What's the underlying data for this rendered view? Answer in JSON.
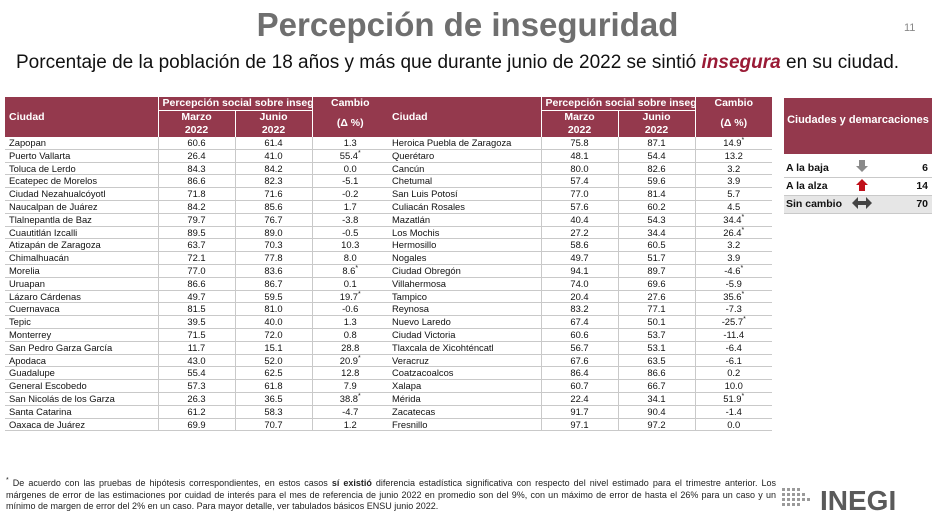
{
  "page": {
    "title": "Percepción de inseguridad",
    "page_number": "11",
    "subtitle_pre": "Porcentaje de la población de 18 años y más que durante junio de 2022 se sintió ",
    "subtitle_highlight": "insegura",
    "subtitle_post": " en su ciudad."
  },
  "table_header": {
    "city": "Ciudad",
    "perception": "Percepción social sobre inseguridad pública",
    "change": "Cambio",
    "change_unit": "(Δ %)",
    "march": "Marzo",
    "june": "Junio",
    "year": "2022"
  },
  "left_rows": [
    {
      "city": "Zapopan",
      "march": "60.6",
      "june": "61.4",
      "change": "1.3",
      "sig": ""
    },
    {
      "city": "Puerto Vallarta",
      "march": "26.4",
      "june": "41.0",
      "change": "55.4",
      "sig": "*"
    },
    {
      "city": "Toluca de Lerdo",
      "march": "84.3",
      "june": "84.2",
      "change": "0.0",
      "sig": ""
    },
    {
      "city": "Ecatepec de Morelos",
      "march": "86.6",
      "june": "82.3",
      "change": "-5.1",
      "sig": ""
    },
    {
      "city": "Ciudad Nezahualcóyotl",
      "march": "71.8",
      "june": "71.6",
      "change": "-0.2",
      "sig": ""
    },
    {
      "city": "Naucalpan de Juárez",
      "march": "84.2",
      "june": "85.6",
      "change": "1.7",
      "sig": ""
    },
    {
      "city": "Tlalnepantla de Baz",
      "march": "79.7",
      "june": "76.7",
      "change": "-3.8",
      "sig": ""
    },
    {
      "city": "Cuautitlán Izcalli",
      "march": "89.5",
      "june": "89.0",
      "change": "-0.5",
      "sig": ""
    },
    {
      "city": "Atizapán de Zaragoza",
      "march": "63.7",
      "june": "70.3",
      "change": "10.3",
      "sig": ""
    },
    {
      "city": "Chimalhuacán",
      "march": "72.1",
      "june": "77.8",
      "change": "8.0",
      "sig": ""
    },
    {
      "city": "Morelia",
      "march": "77.0",
      "june": "83.6",
      "change": "8.6",
      "sig": "*"
    },
    {
      "city": "Uruapan",
      "march": "86.6",
      "june": "86.7",
      "change": "0.1",
      "sig": ""
    },
    {
      "city": "Lázaro Cárdenas",
      "march": "49.7",
      "june": "59.5",
      "change": "19.7",
      "sig": "*"
    },
    {
      "city": "Cuernavaca",
      "march": "81.5",
      "june": "81.0",
      "change": "-0.6",
      "sig": ""
    },
    {
      "city": "Tepic",
      "march": "39.5",
      "june": "40.0",
      "change": "1.3",
      "sig": ""
    },
    {
      "city": "Monterrey",
      "march": "71.5",
      "june": "72.0",
      "change": "0.8",
      "sig": ""
    },
    {
      "city": "San Pedro Garza García",
      "march": "11.7",
      "june": "15.1",
      "change": "28.8",
      "sig": ""
    },
    {
      "city": "Apodaca",
      "march": "43.0",
      "june": "52.0",
      "change": "20.9",
      "sig": "*"
    },
    {
      "city": "Guadalupe",
      "march": "55.4",
      "june": "62.5",
      "change": "12.8",
      "sig": ""
    },
    {
      "city": "General Escobedo",
      "march": "57.3",
      "june": "61.8",
      "change": "7.9",
      "sig": ""
    },
    {
      "city": "San Nicolás de los Garza",
      "march": "26.3",
      "june": "36.5",
      "change": "38.8",
      "sig": "*"
    },
    {
      "city": "Santa Catarina",
      "march": "61.2",
      "june": "58.3",
      "change": "-4.7",
      "sig": ""
    },
    {
      "city": "Oaxaca de Juárez",
      "march": "69.9",
      "june": "70.7",
      "change": "1.2",
      "sig": ""
    }
  ],
  "right_rows": [
    {
      "city": "Heroica Puebla de Zaragoza",
      "march": "75.8",
      "june": "87.1",
      "change": "14.9",
      "sig": "*"
    },
    {
      "city": "Querétaro",
      "march": "48.1",
      "june": "54.4",
      "change": "13.2",
      "sig": ""
    },
    {
      "city": "Cancún",
      "march": "80.0",
      "june": "82.6",
      "change": "3.2",
      "sig": ""
    },
    {
      "city": "Chetumal",
      "march": "57.4",
      "june": "59.6",
      "change": "3.9",
      "sig": ""
    },
    {
      "city": "San Luis Potosí",
      "march": "77.0",
      "june": "81.4",
      "change": "5.7",
      "sig": ""
    },
    {
      "city": "Culiacán Rosales",
      "march": "57.6",
      "june": "60.2",
      "change": "4.5",
      "sig": ""
    },
    {
      "city": "Mazatlán",
      "march": "40.4",
      "june": "54.3",
      "change": "34.4",
      "sig": "*"
    },
    {
      "city": "Los Mochis",
      "march": "27.2",
      "june": "34.4",
      "change": "26.4",
      "sig": "*"
    },
    {
      "city": "Hermosillo",
      "march": "58.6",
      "june": "60.5",
      "change": "3.2",
      "sig": ""
    },
    {
      "city": "Nogales",
      "march": "49.7",
      "june": "51.7",
      "change": "3.9",
      "sig": ""
    },
    {
      "city": "Ciudad Obregón",
      "march": "94.1",
      "june": "89.7",
      "change": "-4.6",
      "sig": "*"
    },
    {
      "city": "Villahermosa",
      "march": "74.0",
      "june": "69.6",
      "change": "-5.9",
      "sig": ""
    },
    {
      "city": "Tampico",
      "march": "20.4",
      "june": "27.6",
      "change": "35.6",
      "sig": "*"
    },
    {
      "city": "Reynosa",
      "march": "83.2",
      "june": "77.1",
      "change": "-7.3",
      "sig": ""
    },
    {
      "city": "Nuevo Laredo",
      "march": "67.4",
      "june": "50.1",
      "change": "-25.7",
      "sig": "*"
    },
    {
      "city": "Ciudad Victoria",
      "march": "60.6",
      "june": "53.7",
      "change": "-11.4",
      "sig": ""
    },
    {
      "city": "Tlaxcala de Xicohténcatl",
      "march": "56.7",
      "june": "53.1",
      "change": "-6.4",
      "sig": ""
    },
    {
      "city": "Veracruz",
      "march": "67.6",
      "june": "63.5",
      "change": "-6.1",
      "sig": ""
    },
    {
      "city": "Coatzacoalcos",
      "march": "86.4",
      "june": "86.6",
      "change": "0.2",
      "sig": ""
    },
    {
      "city": "Xalapa",
      "march": "60.7",
      "june": "66.7",
      "change": "10.0",
      "sig": ""
    },
    {
      "city": "Mérida",
      "march": "22.4",
      "june": "34.1",
      "change": "51.9",
      "sig": "*"
    },
    {
      "city": "Zacatecas",
      "march": "91.7",
      "june": "90.4",
      "change": "-1.4",
      "sig": ""
    },
    {
      "city": "Fresnillo",
      "march": "97.1",
      "june": "97.2",
      "change": "0.0",
      "sig": ""
    }
  ],
  "summary": {
    "title": "Ciudades y demarcaciones",
    "rows": [
      {
        "label": "A la baja",
        "icon": "arrow-down-icon",
        "value": "6",
        "color": "#8a8a8a"
      },
      {
        "label": "A la alza",
        "icon": "arrow-up-icon",
        "value": "14",
        "color": "#c0101a"
      },
      {
        "label": "Sin cambio",
        "icon": "arrow-left-right-icon",
        "value": "70",
        "color": "#444444"
      }
    ]
  },
  "footnote": {
    "marker": "*",
    "pre": "De acuerdo con las pruebas de hipótesis correspondientes, en estos casos ",
    "bold": "sí existió",
    "post": " diferencia estadística significativa con respecto del nivel estimado para el trimestre anterior. Los márgenes de error de las estimaciones por cuidad de interés para el mes de referencia de junio 2022 en promedio son del 9%, con un máximo de error de hasta el 26% para un caso y un mínimo de margen de error del 2% en un caso. Para mayor detalle, ver tabulados básicos ENSU junio 2022."
  },
  "logo": {
    "text": "INEGI",
    "color": "#5a5a5a"
  },
  "colors": {
    "header_bg": "#94394d",
    "title": "#6f6f6f",
    "highlight": "#9a1b36"
  }
}
